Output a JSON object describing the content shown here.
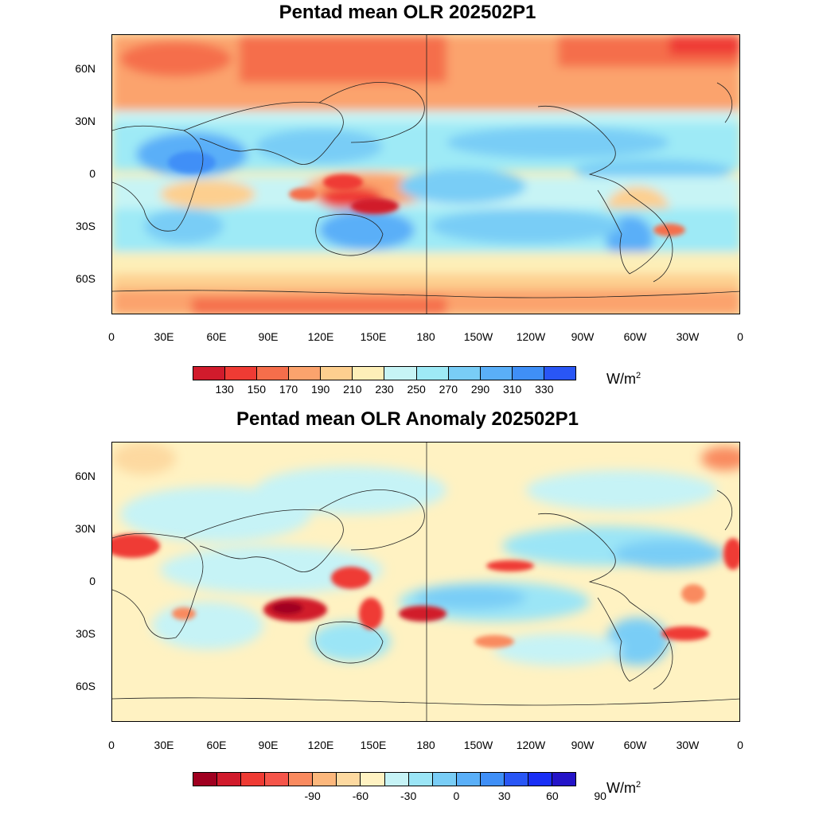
{
  "maps": [
    {
      "title": "Pentad mean OLR 202502P1",
      "lat_labels": [
        "60N",
        "30N",
        "0",
        "30S",
        "60S"
      ],
      "lon_labels": [
        "0",
        "30E",
        "60E",
        "90E",
        "120E",
        "150E",
        "180",
        "150W",
        "120W",
        "90W",
        "60W",
        "30W",
        "0"
      ],
      "colorbar": {
        "colors": [
          "#d11b2c",
          "#ef3b34",
          "#f56e4b",
          "#fba36d",
          "#fdcf8f",
          "#fdefb8",
          "#c7f4f5",
          "#9eeaf6",
          "#79cdf6",
          "#5aaff8",
          "#3f8ff7",
          "#2956f5"
        ],
        "labels": [
          "130",
          "150",
          "170",
          "190",
          "210",
          "230",
          "250",
          "270",
          "290",
          "310",
          "330"
        ],
        "units": "W/m",
        "units_sup": "2"
      }
    },
    {
      "title": "Pentad mean OLR Anomaly 202502P1",
      "lat_labels": [
        "60N",
        "30N",
        "0",
        "30S",
        "60S"
      ],
      "lon_labels": [
        "0",
        "30E",
        "60E",
        "90E",
        "120E",
        "150E",
        "180",
        "150W",
        "120W",
        "90W",
        "60W",
        "30W",
        "0"
      ],
      "colorbar": {
        "colors": [
          "#a00020",
          "#d11b2c",
          "#ef3b34",
          "#f5554a",
          "#f98a5f",
          "#fcb77c",
          "#fdd9a0",
          "#fff2c2",
          "#c6f3f6",
          "#9be5f6",
          "#79cdf6",
          "#5aaff8",
          "#3f8ff7",
          "#2956f5",
          "#1a2ff5",
          "#2414c8"
        ],
        "labels": [
          "-90",
          "-60",
          "-30",
          "0",
          "30",
          "60",
          "90"
        ],
        "units": "W/m",
        "units_sup": "2"
      }
    }
  ]
}
